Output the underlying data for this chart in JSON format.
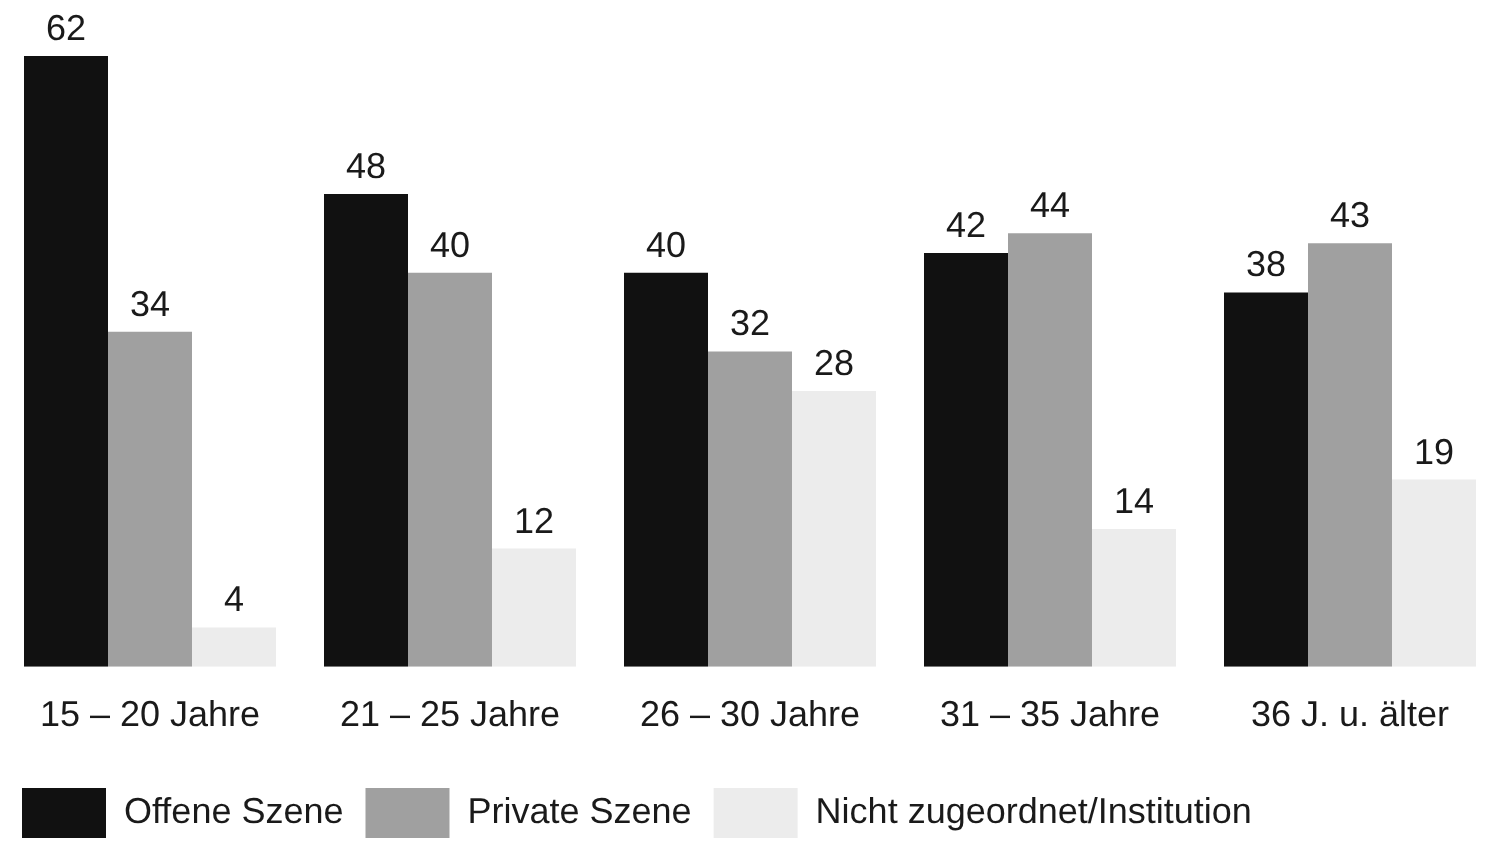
{
  "chart_data": {
    "type": "bar",
    "categories": [
      "15 – 20 Jahre",
      "21 – 25 Jahre",
      "26 – 30 Jahre",
      "31 – 35 Jahre",
      "36 J. u. älter"
    ],
    "series": [
      {
        "name": "Offene Szene",
        "color": "#111111",
        "values": [
          62,
          48,
          40,
          42,
          38
        ]
      },
      {
        "name": "Private Szene",
        "color": "#a0a0a0",
        "values": [
          34,
          40,
          32,
          44,
          43
        ]
      },
      {
        "name": "Nicht zugeordnet/Institution",
        "color": "#ececec",
        "values": [
          4,
          12,
          28,
          14,
          19
        ]
      }
    ],
    "data_labels": true,
    "legend": "bottom left"
  }
}
